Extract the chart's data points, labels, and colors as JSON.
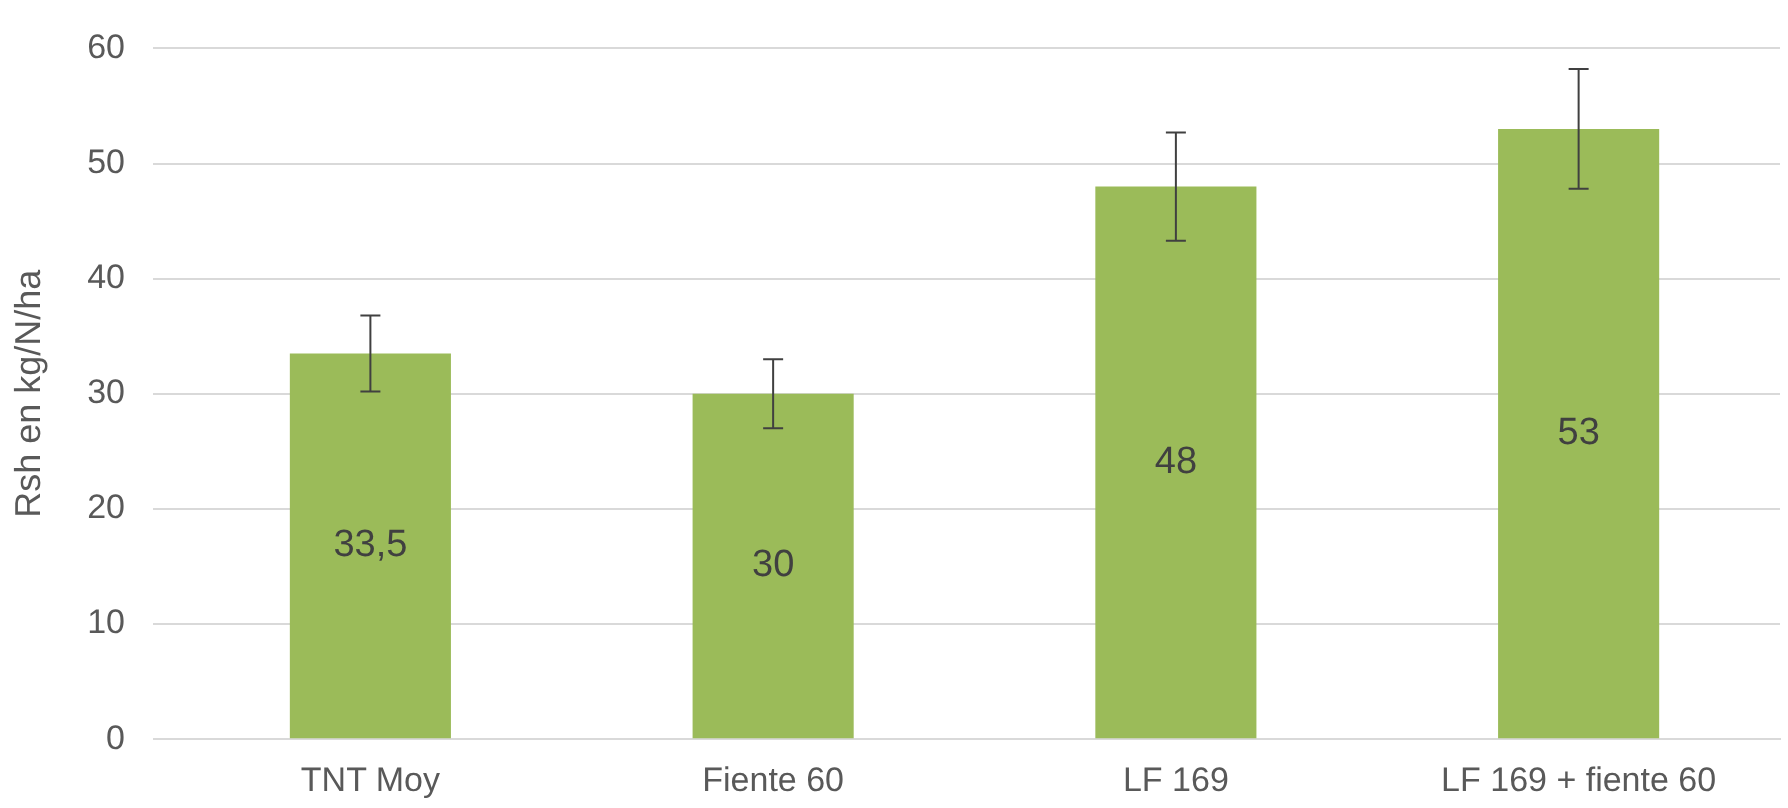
{
  "chart_data": {
    "type": "bar",
    "ylabel": "Rsh en kg/N/ha",
    "categories": [
      "TNT Moy",
      "Fiente 60",
      "LF 169",
      "LF 169 + fiente 60"
    ],
    "values": [
      33.5,
      30,
      48,
      53
    ],
    "value_labels": [
      "33,5",
      "30",
      "48",
      "53"
    ],
    "errors": [
      3.3,
      3,
      4.7,
      5.2
    ],
    "color": "#9bbb59",
    "ylim": [
      0,
      60
    ],
    "yticks": [
      0,
      10,
      20,
      30,
      40,
      50,
      60
    ],
    "grid": "y",
    "legend": false
  }
}
